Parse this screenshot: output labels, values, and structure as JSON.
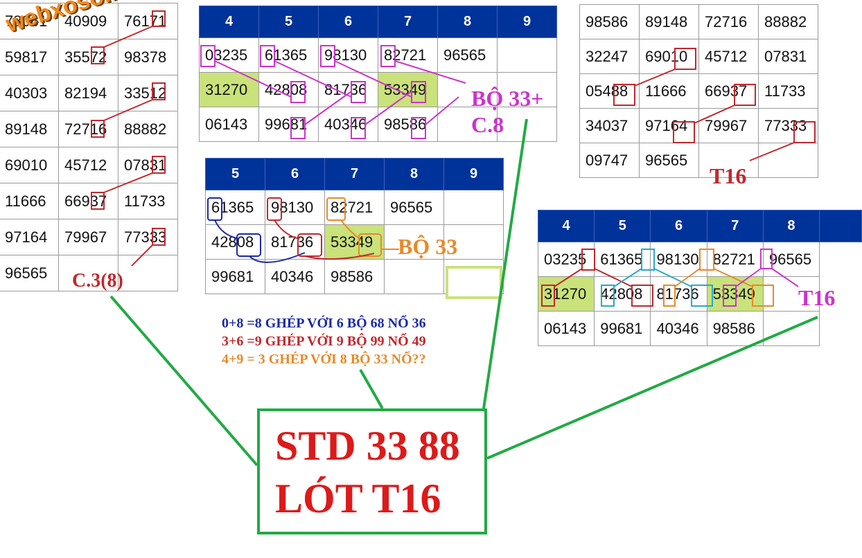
{
  "watermark": "webxoso.net",
  "left_table": {
    "rows": [
      [
        "78061",
        "40909",
        "76171"
      ],
      [
        "59817",
        "35572",
        "98378"
      ],
      [
        "40303",
        "82194",
        "33512"
      ],
      [
        "89148",
        "72716",
        "88882"
      ],
      [
        "69010",
        "45712",
        "07831"
      ],
      [
        "11666",
        "66937",
        "11733"
      ],
      [
        "97164",
        "79967",
        "77333"
      ],
      [
        "96565",
        "",
        ""
      ]
    ],
    "label": "C.3(8)"
  },
  "top_table": {
    "headers": [
      "4",
      "5",
      "6",
      "7",
      "8",
      "9"
    ],
    "rows": [
      [
        "03235",
        "61365",
        "98130",
        "82721",
        "96565",
        ""
      ],
      [
        "31270",
        "42808",
        "81736",
        "53349",
        "",
        ""
      ],
      [
        "06143",
        "99681",
        "40346",
        "98586",
        "",
        ""
      ]
    ],
    "label_line1": "BỘ 33+",
    "label_line2": "C.8"
  },
  "middle_table": {
    "headers": [
      "5",
      "6",
      "7",
      "8",
      "9"
    ],
    "rows": [
      [
        "61365",
        "98130",
        "82721",
        "96565",
        ""
      ],
      [
        "42808",
        "81736",
        "53349",
        "",
        ""
      ],
      [
        "99681",
        "40346",
        "98586",
        "",
        ""
      ]
    ],
    "label": "BỘ 33"
  },
  "rules": [
    {
      "text": "0+8 =8 GHÉP VỚI 6 BỘ 68 NỔ 36",
      "color": "#1a2aa8"
    },
    {
      "text": "3+6 =9 GHÉP VỚI 9 BỘ 99 NỔ 49",
      "color": "#c0282d"
    },
    {
      "text": "4+9 = 3 GHÉP VỚI 8 BỘ 33 NỔ??",
      "color": "#e8892a"
    }
  ],
  "top_right_table": {
    "rows": [
      [
        "98586",
        "89148",
        "72716",
        "88882"
      ],
      [
        "32247",
        "69010",
        "45712",
        "07831"
      ],
      [
        "05488",
        "11666",
        "66937",
        "11733"
      ],
      [
        "34037",
        "97164",
        "79967",
        "77333"
      ],
      [
        "09747",
        "96565",
        "",
        ""
      ]
    ],
    "label": "T16"
  },
  "bottom_right_table": {
    "headers": [
      "4",
      "5",
      "6",
      "7",
      "8",
      ""
    ],
    "rows": [
      [
        "03235",
        "61365",
        "98130",
        "82721",
        "96565"
      ],
      [
        "31270",
        "42808",
        "81736",
        "53349",
        ""
      ],
      [
        "06143",
        "99681",
        "40346",
        "98586",
        ""
      ]
    ],
    "label": "T16"
  },
  "conclusion": {
    "line1": "STD 33 88",
    "line2": "LÓT T16"
  },
  "colors": {
    "header_blue": "#003399",
    "highlight_green": "#c9e27a",
    "mark_red": "#c0282d",
    "mark_magenta": "#cc33cc",
    "mark_orange": "#e8892a",
    "mark_blue": "#1a2aa8",
    "mark_cyan": "#2aa8c8",
    "connector_green": "#22aa44",
    "conclusion_red": "#dd1a1a"
  }
}
